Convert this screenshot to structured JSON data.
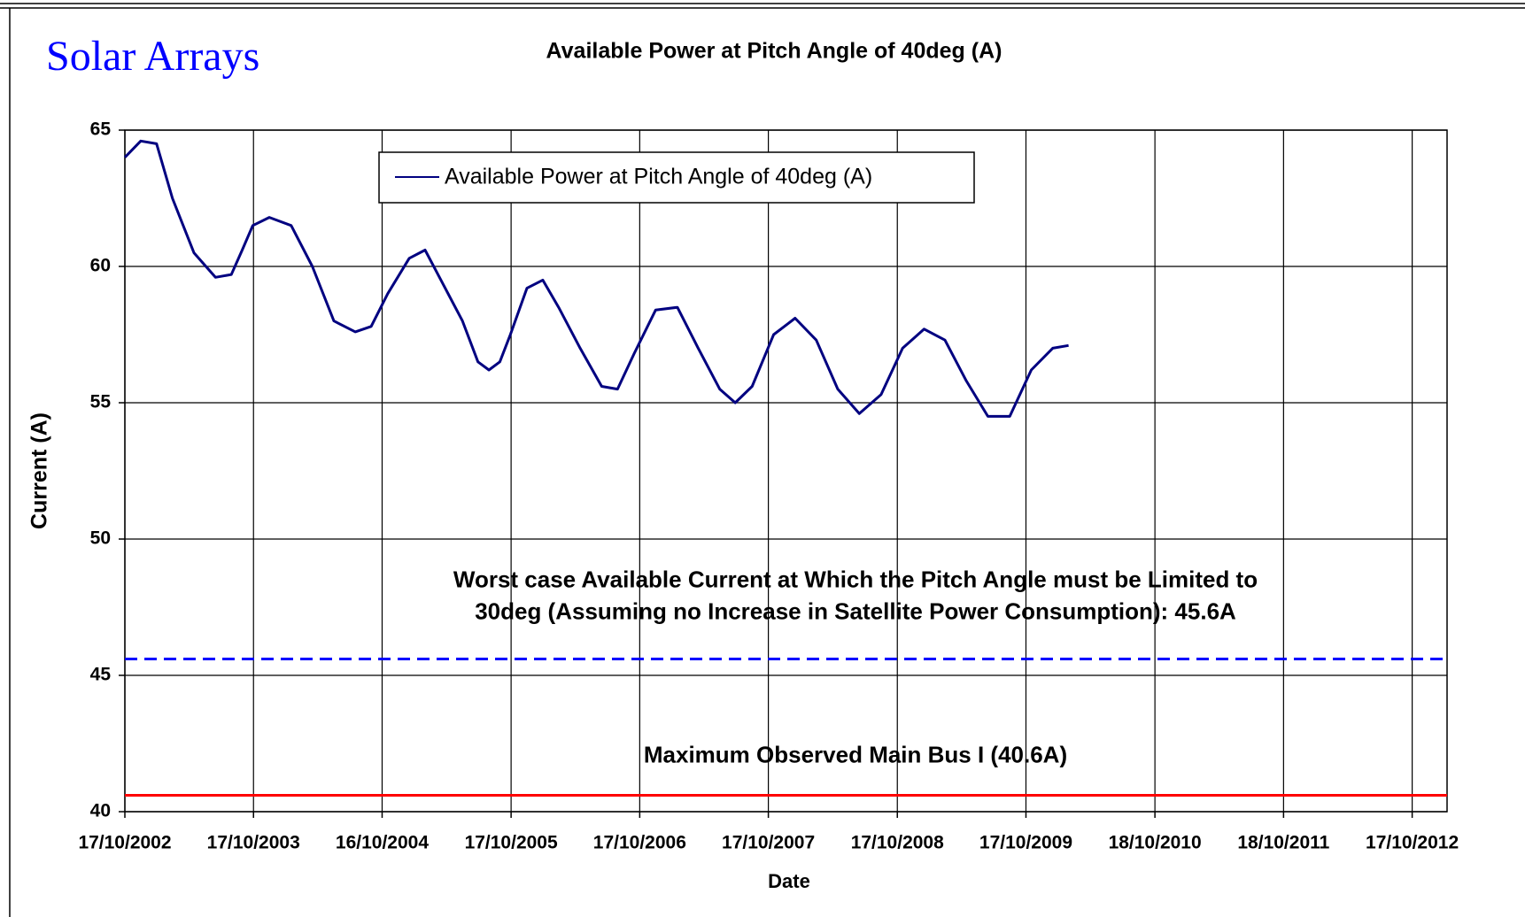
{
  "page_title": "Solar Arrays",
  "chart_data": {
    "type": "line",
    "title": "Available Power at  Pitch Angle of 40deg (A)",
    "xlabel": "Date",
    "ylabel": "Current (A)",
    "xlim": [
      "2002-10-17",
      "2013-01-24"
    ],
    "xticks": [
      {
        "value": "2002-10-17",
        "label": "17/10/2002"
      },
      {
        "value": "2003-10-17",
        "label": "17/10/2003"
      },
      {
        "value": "2004-10-16",
        "label": "16/10/2004"
      },
      {
        "value": "2005-10-17",
        "label": "17/10/2005"
      },
      {
        "value": "2006-10-17",
        "label": "17/10/2006"
      },
      {
        "value": "2007-10-17",
        "label": "17/10/2007"
      },
      {
        "value": "2008-10-17",
        "label": "17/10/2008"
      },
      {
        "value": "2009-10-17",
        "label": "17/10/2009"
      },
      {
        "value": "2010-10-18",
        "label": "18/10/2010"
      },
      {
        "value": "2011-10-18",
        "label": "18/10/2011"
      },
      {
        "value": "2012-10-17",
        "label": "17/10/2012"
      }
    ],
    "ylim": [
      40,
      65
    ],
    "yticks": [
      40,
      45,
      50,
      55,
      60,
      65
    ],
    "grid": true,
    "legend": "top",
    "series": [
      {
        "name": "Available Power at  Pitch Angle of 40deg (A)",
        "color": "#000080",
        "x": [
          "2002-10-17",
          "2002-12-01",
          "2003-01-15",
          "2003-03-01",
          "2003-05-01",
          "2003-07-01",
          "2003-08-15",
          "2003-09-15",
          "2003-10-15",
          "2003-12-01",
          "2004-02-01",
          "2004-04-01",
          "2004-06-01",
          "2004-08-01",
          "2004-09-15",
          "2004-11-01",
          "2005-01-01",
          "2005-02-15",
          "2005-04-01",
          "2005-06-01",
          "2005-07-15",
          "2005-08-15",
          "2005-09-15",
          "2005-10-15",
          "2005-12-01",
          "2006-01-15",
          "2006-03-01",
          "2006-05-01",
          "2006-07-01",
          "2006-08-15",
          "2006-10-01",
          "2006-12-01",
          "2007-02-01",
          "2007-04-01",
          "2007-06-01",
          "2007-07-15",
          "2007-09-01",
          "2007-11-01",
          "2008-01-01",
          "2008-03-01",
          "2008-05-01",
          "2008-07-01",
          "2008-09-01",
          "2008-11-01",
          "2009-01-01",
          "2009-03-01",
          "2009-05-01",
          "2009-07-01",
          "2009-09-01",
          "2009-11-01",
          "2010-01-01",
          "2010-02-15"
        ],
        "values": [
          64,
          64.6,
          64.5,
          62.5,
          60.5,
          59.6,
          59.7,
          60.6,
          61.5,
          61.8,
          61.5,
          60,
          58,
          57.6,
          57.8,
          59,
          60.3,
          60.6,
          59.5,
          58,
          56.5,
          56.2,
          56.5,
          57.5,
          59.2,
          59.5,
          58.5,
          57,
          55.6,
          55.5,
          56.8,
          58.4,
          58.5,
          57,
          55.5,
          55,
          55.6,
          57.5,
          58.1,
          57.3,
          55.5,
          54.6,
          55.3,
          57,
          57.7,
          57.3,
          55.8,
          54.5,
          54.5,
          56.2,
          57,
          57.1
        ]
      }
    ],
    "reference_lines": [
      {
        "value": 45.6,
        "color": "#0000ff",
        "style": "dashed",
        "label": [
          "Worst case Available Current at Which the Pitch Angle must be Limited to",
          "30deg (Assuming no Increase in Satellite Power Consumption): 45.6A"
        ]
      },
      {
        "value": 40.6,
        "color": "#ff0000",
        "style": "solid",
        "label": [
          "Maximum Observed Main Bus I (40.6A)"
        ]
      }
    ]
  }
}
